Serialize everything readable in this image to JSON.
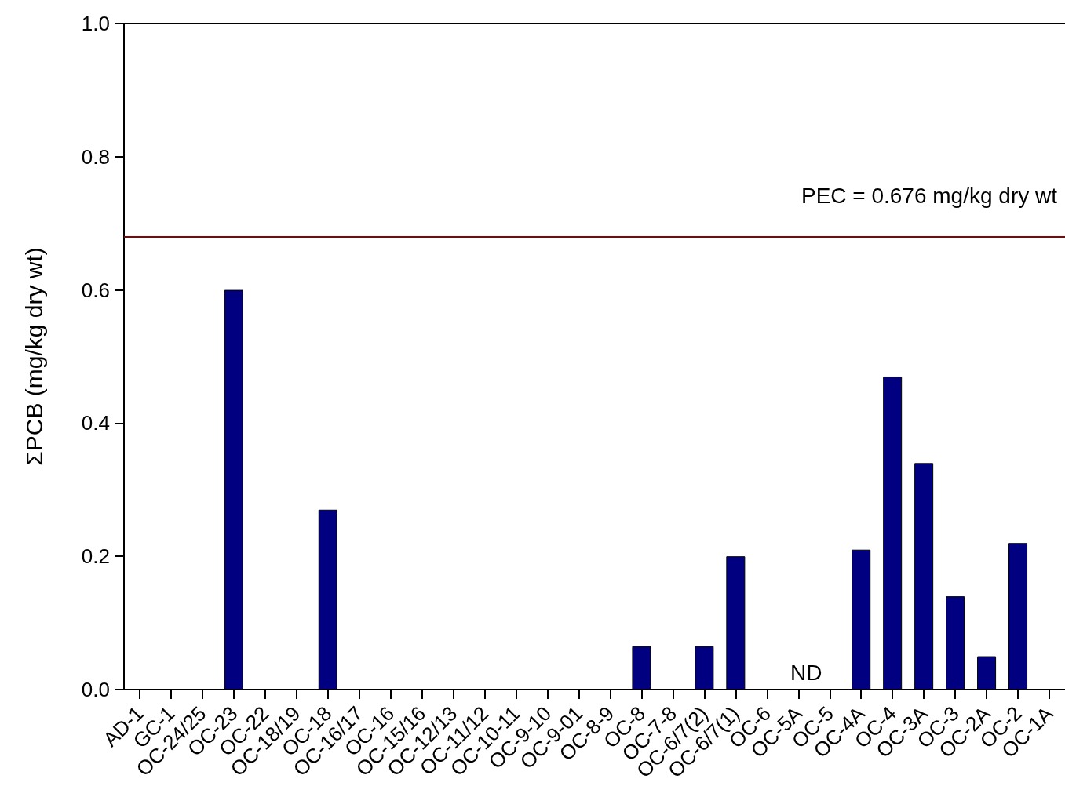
{
  "chart_data": {
    "type": "bar",
    "ylabel": "ΣPCB (mg/kg dry wt)",
    "categories": [
      "AD-1",
      "GC-1",
      "OC-24/25",
      "OC-23",
      "OC-22",
      "OC-18/19",
      "OC-18",
      "OC-16/17",
      "OC-16",
      "OC-15/16",
      "OC-12/13",
      "OC-11/12",
      "OC-10-11",
      "OC-9-10",
      "OC-9-01",
      "OC-8-9",
      "OC-8",
      "OC-7-8",
      "OC-6/7(2)",
      "OC-6/7(1)",
      "OC-6",
      "OC-5A",
      "OC-5",
      "OC-4A",
      "OC-4",
      "OC-3A",
      "OC-3",
      "OC-2A",
      "OC-2",
      "OC-1A"
    ],
    "values": [
      null,
      null,
      null,
      0.6,
      null,
      null,
      0.27,
      null,
      null,
      null,
      null,
      null,
      null,
      null,
      null,
      null,
      0.065,
      null,
      0.065,
      0.2,
      null,
      null,
      null,
      0.21,
      0.47,
      0.34,
      0.14,
      0.05,
      0.22,
      null
    ],
    "color": "#000080",
    "ylim": [
      0,
      1
    ],
    "yticks": [
      {
        "value": 0,
        "label": "0.0"
      },
      {
        "value": 0.2,
        "label": "0.2"
      },
      {
        "value": 0.4,
        "label": "0.4"
      },
      {
        "value": 0.6,
        "label": "0.6"
      },
      {
        "value": 0.8,
        "label": "0.8"
      },
      {
        "value": 1,
        "label": "1.0"
      }
    ],
    "ref_lines": [
      {
        "axis": "y",
        "value": 0.676,
        "label": "PEC = 0.676 mg/kg dry wt",
        "color": "#8b0000"
      }
    ],
    "annotations": [
      "ND"
    ]
  }
}
